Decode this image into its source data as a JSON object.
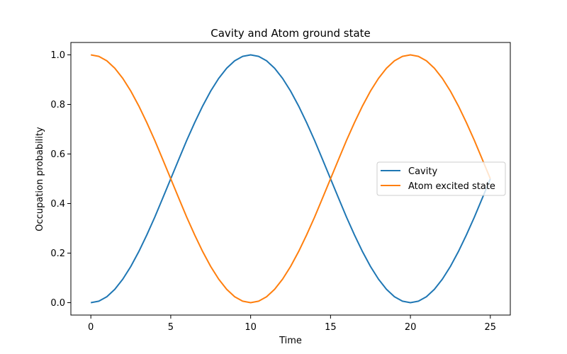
{
  "chart_data": {
    "type": "line",
    "title": "Cavity and Atom ground state",
    "xlabel": "Time",
    "ylabel": "Occupation probability",
    "xlim": [
      -1.25,
      26.25
    ],
    "ylim": [
      -0.05,
      1.05
    ],
    "xticks": [
      0,
      5,
      10,
      15,
      20,
      25
    ],
    "yticks": [
      0.0,
      0.2,
      0.4,
      0.6,
      0.8,
      1.0
    ],
    "xtick_labels": [
      "0",
      "5",
      "10",
      "15",
      "20",
      "25"
    ],
    "ytick_labels": [
      "0.0",
      "0.2",
      "0.4",
      "0.6",
      "0.8",
      "1.0"
    ],
    "grid": false,
    "legend_position": "center-right",
    "x": [
      0,
      0.5,
      1,
      1.5,
      2,
      2.5,
      3,
      3.5,
      4,
      4.5,
      5,
      5.5,
      6,
      6.5,
      7,
      7.5,
      8,
      8.5,
      9,
      9.5,
      10,
      10.5,
      11,
      11.5,
      12,
      12.5,
      13,
      13.5,
      14,
      14.5,
      15,
      15.5,
      16,
      16.5,
      17,
      17.5,
      18,
      18.5,
      19,
      19.5,
      20,
      20.5,
      21,
      21.5,
      22,
      22.5,
      23,
      23.5,
      24,
      24.5,
      25
    ],
    "series": [
      {
        "name": "Cavity",
        "color": "#1f77b4",
        "values": [
          0.0,
          0.006,
          0.024,
          0.054,
          0.095,
          0.146,
          0.206,
          0.273,
          0.345,
          0.422,
          0.5,
          0.578,
          0.655,
          0.727,
          0.794,
          0.854,
          0.905,
          0.946,
          0.976,
          0.994,
          1.0,
          0.994,
          0.976,
          0.946,
          0.905,
          0.854,
          0.794,
          0.727,
          0.655,
          0.578,
          0.5,
          0.422,
          0.345,
          0.273,
          0.206,
          0.146,
          0.095,
          0.054,
          0.024,
          0.006,
          0.0,
          0.006,
          0.024,
          0.054,
          0.095,
          0.146,
          0.206,
          0.273,
          0.345,
          0.422,
          0.5
        ]
      },
      {
        "name": "Atom excited state",
        "color": "#ff7f0e",
        "values": [
          1.0,
          0.994,
          0.976,
          0.946,
          0.905,
          0.854,
          0.794,
          0.727,
          0.655,
          0.578,
          0.5,
          0.422,
          0.345,
          0.273,
          0.206,
          0.146,
          0.095,
          0.054,
          0.024,
          0.006,
          0.0,
          0.006,
          0.024,
          0.054,
          0.095,
          0.146,
          0.206,
          0.273,
          0.345,
          0.422,
          0.5,
          0.578,
          0.655,
          0.727,
          0.794,
          0.854,
          0.905,
          0.946,
          0.976,
          0.994,
          1.0,
          0.994,
          0.976,
          0.946,
          0.905,
          0.854,
          0.794,
          0.727,
          0.655,
          0.578,
          0.5
        ]
      }
    ]
  }
}
